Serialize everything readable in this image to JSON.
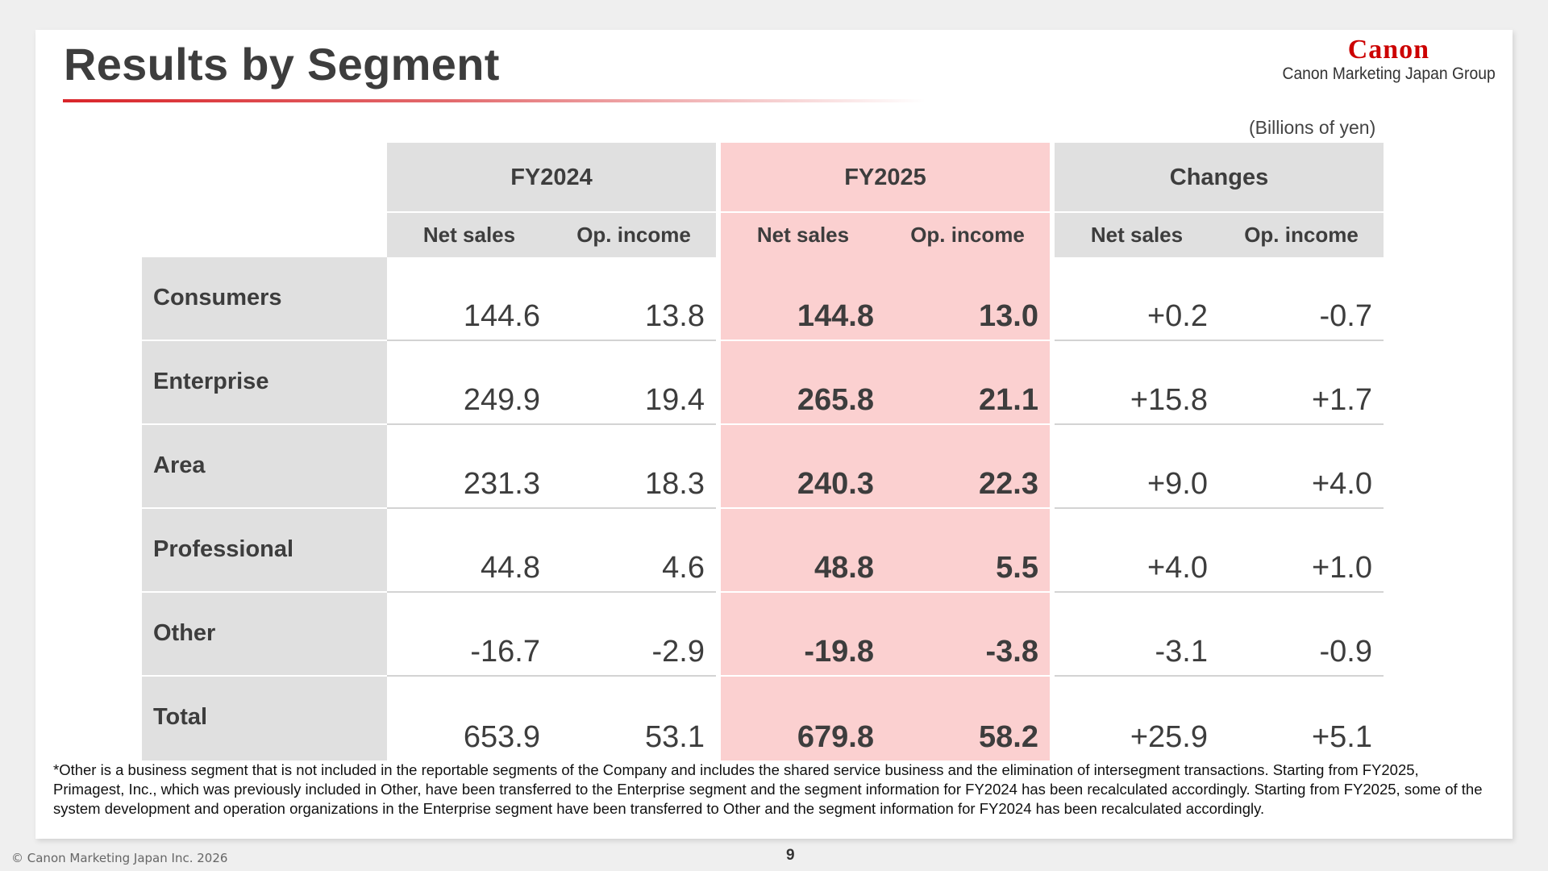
{
  "title": "Results by Segment",
  "brand": {
    "logo": "Canon",
    "group": "Canon Marketing Japan Group",
    "logo_color": "#cc0000"
  },
  "unit": "(Billions of yen)",
  "table": {
    "groups": [
      "FY2024",
      "FY2025",
      "Changes"
    ],
    "subheaders": [
      "Net sales",
      "Op. income",
      "Net sales",
      "Op. income",
      "Net sales",
      "Op. income"
    ],
    "rows": [
      {
        "label": "Consumers",
        "values": [
          "144.6",
          "13.8",
          "144.8",
          "13.0",
          "+0.2",
          "-0.7"
        ]
      },
      {
        "label": "Enterprise",
        "values": [
          "249.9",
          "19.4",
          "265.8",
          "21.1",
          "+15.8",
          "+1.7"
        ]
      },
      {
        "label": "Area",
        "values": [
          "231.3",
          "18.3",
          "240.3",
          "22.3",
          "+9.0",
          "+4.0"
        ]
      },
      {
        "label": "Professional",
        "values": [
          "44.8",
          "4.6",
          "48.8",
          "5.5",
          "+4.0",
          "+1.0"
        ]
      },
      {
        "label": "Other",
        "values": [
          "-16.7",
          "-2.9",
          "-19.8",
          "-3.8",
          "-3.1",
          "-0.9"
        ]
      },
      {
        "label": "Total",
        "values": [
          "653.9",
          "53.1",
          "679.8",
          "58.2",
          "+25.9",
          "+5.1"
        ]
      }
    ],
    "highlight_color": "#fbd0d0",
    "header_gray": "#e0e0e0"
  },
  "footnote": "*Other is a business segment that is not included in the reportable segments of the Company and includes the shared service business and the elimination of intersegment transactions. Starting from FY2025, Primagest, Inc., which was previously included in Other, have been transferred to the Enterprise segment and the segment information for FY2024 has been recalculated accordingly. Starting from FY2025, some of the system development and operation organizations in the Enterprise segment have been transferred to Other and the segment information for FY2024 has been recalculated accordingly.",
  "copyright": "© Canon Marketing Japan Inc. 2026",
  "page_number": "9"
}
